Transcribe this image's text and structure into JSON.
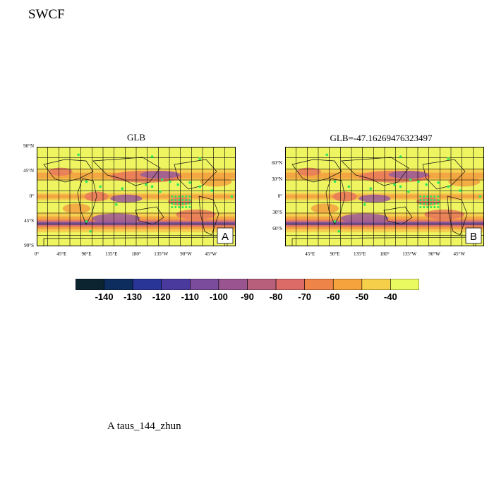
{
  "figure_title": "SWCF",
  "caption": "A  taus_144_zhun",
  "panels": [
    {
      "title": "GLB",
      "label": "A",
      "lat_labels": [
        "90°N",
        "45°N",
        "0°",
        "45°S",
        "90°S"
      ],
      "lon_labels": [
        "0°",
        "45°E",
        "90°E",
        "135°E",
        "180°",
        "135°W",
        "90°W",
        "45°W"
      ]
    },
    {
      "title": "GLB=-47.16269476323497",
      "label": "B",
      "lat_labels": [
        "60°N",
        "30°N",
        "0°",
        "30°S",
        "60°S"
      ],
      "lon_labels": [
        "45°E",
        "90°E",
        "135°E",
        "180°",
        "135°W",
        "90°W",
        "45°W"
      ]
    }
  ],
  "colorbar": {
    "labels": [
      "-140",
      "-130",
      "-120",
      "-110",
      "-100",
      "-90",
      "-80",
      "-70",
      "-60",
      "-50",
      "-40"
    ],
    "colors": [
      "#0c2330",
      "#0d2d5e",
      "#2a3598",
      "#4b3a9e",
      "#7b4c9c",
      "#9a5591",
      "#b85f7c",
      "#dc6b67",
      "#ef8448",
      "#f5a33c",
      "#f5cf49",
      "#e9f960"
    ]
  },
  "map_colors": {
    "background": "#eef560",
    "yellow_orange": "#f6c84c",
    "orange": "#f2a040",
    "salmon": "#e8785c",
    "purple": "#9a5d99",
    "dark_purple": "#6f4d9e",
    "marker": "#2ee65a",
    "grid": "#000000",
    "coast": "#111111"
  }
}
